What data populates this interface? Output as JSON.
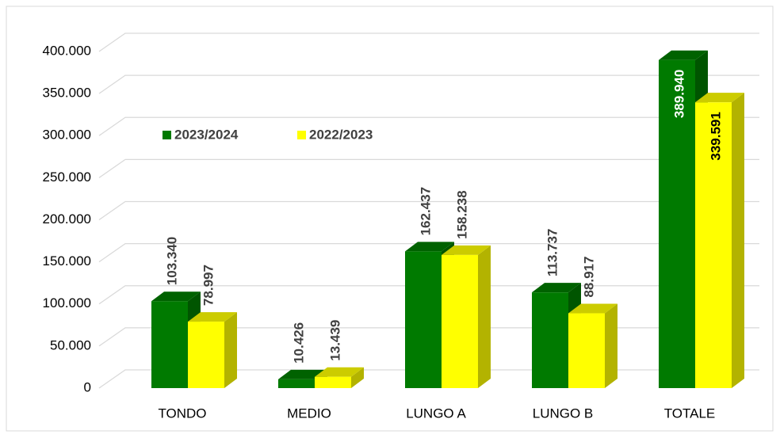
{
  "chart_data": {
    "type": "bar3d",
    "categories": [
      "TONDO",
      "MEDIO",
      "LUNGO A",
      "LUNGO B",
      "TOTALE"
    ],
    "series": [
      {
        "name": "2023/2024",
        "color": "#007A00",
        "values": [
          103340,
          10426,
          162437,
          113737,
          389940
        ],
        "value_labels": [
          "103.340",
          "10.426",
          "162.437",
          "113.737",
          "389.940"
        ]
      },
      {
        "name": "2022/2023",
        "color": "#FFFF00",
        "values": [
          78997,
          13439,
          158238,
          88917,
          339591
        ],
        "value_labels": [
          "78.997",
          "13.439",
          "158.238",
          "88.917",
          "339.591"
        ]
      }
    ],
    "ylim": [
      0,
      400000
    ],
    "yticks": [
      0,
      {
        "value": 50000,
        "label": "50.000"
      },
      {
        "value": 100000,
        "label": "100.000"
      },
      {
        "value": 150000,
        "label": "150.000"
      },
      {
        "value": 200000,
        "label": "200.000"
      },
      {
        "value": 250000,
        "label": "250.000"
      },
      {
        "value": 300000,
        "label": "300.000"
      },
      {
        "value": 350000,
        "label": "350.000"
      },
      {
        "value": 400000,
        "label": "400.000"
      }
    ],
    "grid": true
  }
}
